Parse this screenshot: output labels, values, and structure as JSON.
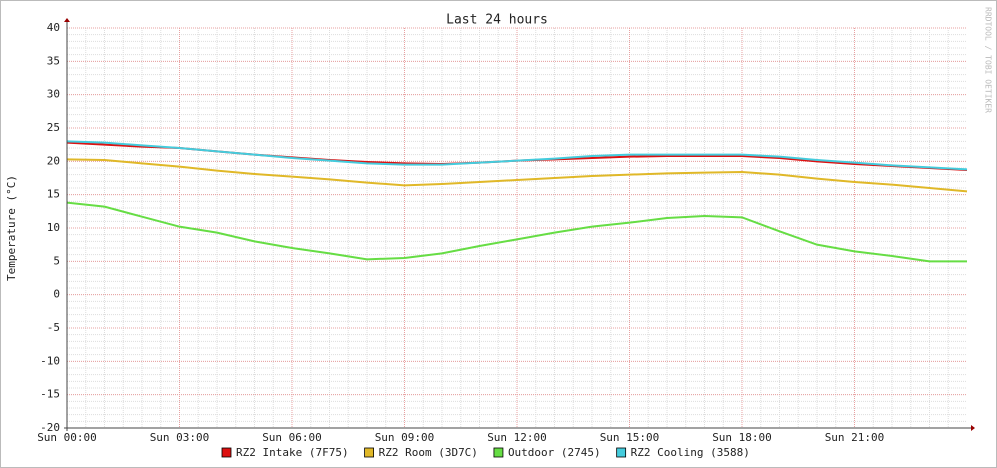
{
  "chart_data": {
    "type": "line",
    "title": "Last 24 hours",
    "y_label": "Temperature (°C)",
    "watermark": "RRDTOOL / TOBI OETIKER",
    "x": [
      0,
      1,
      2,
      3,
      4,
      5,
      6,
      7,
      8,
      9,
      10,
      11,
      12,
      13,
      14,
      15,
      16,
      17,
      18,
      19,
      20,
      21,
      22,
      23,
      24
    ],
    "xlim": [
      0,
      24
    ],
    "xticks": [
      {
        "value": 0,
        "label": "Sun 00:00"
      },
      {
        "value": 3,
        "label": "Sun 03:00"
      },
      {
        "value": 6,
        "label": "Sun 06:00"
      },
      {
        "value": 9,
        "label": "Sun 09:00"
      },
      {
        "value": 12,
        "label": "Sun 12:00"
      },
      {
        "value": 15,
        "label": "Sun 15:00"
      },
      {
        "value": 18,
        "label": "Sun 18:00"
      },
      {
        "value": 21,
        "label": "Sun 21:00"
      }
    ],
    "ylim": [
      -20,
      40
    ],
    "yticks": [
      -20,
      -15,
      -10,
      -5,
      0,
      5,
      10,
      15,
      20,
      25,
      30,
      35,
      40
    ],
    "grid": true,
    "series": [
      {
        "name": "RZ2 Intake (7F75)",
        "color": "#dd1111",
        "values": [
          22.8,
          22.5,
          22.2,
          22,
          21.5,
          21,
          20.6,
          20.2,
          19.9,
          19.7,
          19.6,
          19.8,
          20.1,
          20.3,
          20.5,
          20.7,
          20.8,
          20.8,
          20.8,
          20.5,
          20,
          19.6,
          19.3,
          19,
          18.7
        ]
      },
      {
        "name": "RZ2 Room (3D7C)",
        "color": "#e0b828",
        "values": [
          20.3,
          20.2,
          19.7,
          19.2,
          18.6,
          18.1,
          17.7,
          17.3,
          16.8,
          16.4,
          16.6,
          16.9,
          17.2,
          17.5,
          17.8,
          18,
          18.2,
          18.3,
          18.4,
          18,
          17.4,
          16.9,
          16.5,
          16,
          15.5
        ]
      },
      {
        "name": "Outdoor (2745)",
        "color": "#66dd44",
        "values": [
          13.8,
          13.2,
          11.7,
          10.2,
          9.3,
          8,
          7,
          6.2,
          5.3,
          5.5,
          6.2,
          7.3,
          8.3,
          9.3,
          10.2,
          10.8,
          11.5,
          11.8,
          11.6,
          9.5,
          7.5,
          6.5,
          5.8,
          5,
          5
        ]
      },
      {
        "name": "RZ2 Cooling (3588)",
        "color": "#44ccdd",
        "values": [
          23,
          22.8,
          22.4,
          22,
          21.5,
          21,
          20.5,
          20.1,
          19.7,
          19.5,
          19.5,
          19.8,
          20.1,
          20.4,
          20.8,
          21,
          21,
          21,
          21,
          20.7,
          20.2,
          19.8,
          19.4,
          19.1,
          18.8
        ]
      }
    ]
  }
}
